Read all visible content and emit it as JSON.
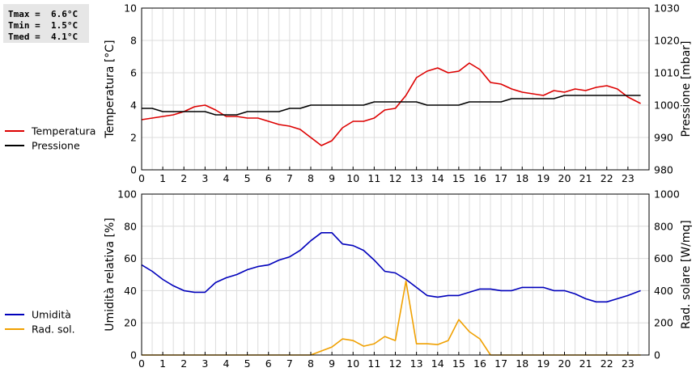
{
  "stats": [
    {
      "label": "Tmax =",
      "value": "6.6°C"
    },
    {
      "label": "Tmin =",
      "value": "1.5°C"
    },
    {
      "label": "Tmed =",
      "value": "4.1°C"
    }
  ],
  "chart_data": [
    {
      "type": "line",
      "xlim": [
        0,
        24
      ],
      "x_ticks": [
        0,
        1,
        2,
        3,
        4,
        5,
        6,
        7,
        8,
        9,
        10,
        11,
        12,
        13,
        14,
        15,
        16,
        17,
        18,
        19,
        20,
        21,
        22,
        23
      ],
      "ylabel_left": "Temperatura [°C]",
      "ylim_left": [
        0,
        10
      ],
      "y_ticks_left": [
        0,
        2,
        4,
        6,
        8,
        10
      ],
      "ylabel_right": "Pressione [mbar]",
      "ylim_right": [
        980,
        1030
      ],
      "y_ticks_right": [
        980,
        990,
        1000,
        1010,
        1020,
        1030
      ],
      "grid": true,
      "legend_position": "left",
      "series": [
        {
          "name": "Temperatura",
          "axis": "left",
          "color": "#dd0000",
          "x": [
            0,
            0.5,
            1,
            1.5,
            2,
            2.5,
            3,
            3.5,
            4,
            4.5,
            5,
            5.5,
            6,
            6.5,
            7,
            7.5,
            8,
            8.5,
            9,
            9.5,
            10,
            10.5,
            11,
            11.5,
            12,
            12.5,
            13,
            13.5,
            14,
            14.5,
            15,
            15.5,
            16,
            16.5,
            17,
            17.5,
            18,
            18.5,
            19,
            19.5,
            20,
            20.5,
            21,
            21.5,
            22,
            22.5,
            23,
            23.6
          ],
          "values": [
            3.1,
            3.2,
            3.3,
            3.4,
            3.6,
            3.9,
            4.0,
            3.7,
            3.3,
            3.3,
            3.2,
            3.2,
            3.0,
            2.8,
            2.7,
            2.5,
            2.0,
            1.5,
            1.8,
            2.6,
            3.0,
            3.0,
            3.2,
            3.7,
            3.8,
            4.6,
            5.7,
            6.1,
            6.3,
            6.0,
            6.1,
            6.6,
            6.2,
            5.4,
            5.3,
            5.0,
            4.8,
            4.7,
            4.6,
            4.9,
            4.8,
            5.0,
            4.9,
            5.1,
            5.2,
            5.0,
            4.5,
            4.1
          ]
        },
        {
          "name": "Pressione",
          "axis": "right",
          "color": "#000000",
          "x": [
            0,
            0.5,
            1,
            1.5,
            2,
            2.5,
            3,
            3.5,
            4,
            4.5,
            5,
            5.5,
            6,
            6.5,
            7,
            7.5,
            8,
            8.5,
            9,
            9.5,
            10,
            10.5,
            11,
            11.5,
            12,
            12.5,
            13,
            13.5,
            14,
            14.5,
            15,
            15.5,
            16,
            16.5,
            17,
            17.5,
            18,
            18.5,
            19,
            19.5,
            20,
            20.5,
            21,
            21.5,
            22,
            22.5,
            23,
            23.6
          ],
          "values": [
            999,
            999,
            998,
            998,
            998,
            998,
            998,
            997,
            997,
            997,
            998,
            998,
            998,
            998,
            999,
            999,
            1000,
            1000,
            1000,
            1000,
            1000,
            1000,
            1001,
            1001,
            1001,
            1001,
            1001,
            1000,
            1000,
            1000,
            1000,
            1001,
            1001,
            1001,
            1001,
            1002,
            1002,
            1002,
            1002,
            1002,
            1003,
            1003,
            1003,
            1003,
            1003,
            1003,
            1003,
            1003
          ]
        }
      ]
    },
    {
      "type": "line",
      "xlim": [
        0,
        24
      ],
      "x_ticks": [
        0,
        1,
        2,
        3,
        4,
        5,
        6,
        7,
        8,
        9,
        10,
        11,
        12,
        13,
        14,
        15,
        16,
        17,
        18,
        19,
        20,
        21,
        22,
        23
      ],
      "ylabel_left": "Umidità relativa [%]",
      "ylim_left": [
        0,
        100
      ],
      "y_ticks_left": [
        0,
        20,
        40,
        60,
        80,
        100
      ],
      "ylabel_right": "Rad. solare [W/mq]",
      "ylim_right": [
        0,
        1000
      ],
      "y_ticks_right": [
        0,
        200,
        400,
        600,
        800,
        1000
      ],
      "grid": true,
      "legend_position": "left",
      "series": [
        {
          "name": "Umidità",
          "axis": "left",
          "color": "#0000bb",
          "x": [
            0,
            0.5,
            1,
            1.5,
            2,
            2.5,
            3,
            3.5,
            4,
            4.5,
            5,
            5.5,
            6,
            6.5,
            7,
            7.5,
            8,
            8.5,
            9,
            9.5,
            10,
            10.5,
            11,
            11.5,
            12,
            12.5,
            13,
            13.5,
            14,
            14.5,
            15,
            15.5,
            16,
            16.5,
            17,
            17.5,
            18,
            18.5,
            19,
            19.5,
            20,
            20.5,
            21,
            21.5,
            22,
            22.5,
            23,
            23.6
          ],
          "values": [
            56,
            52,
            47,
            43,
            40,
            39,
            39,
            45,
            48,
            50,
            53,
            55,
            56,
            59,
            61,
            65,
            71,
            76,
            76,
            69,
            68,
            65,
            59,
            52,
            51,
            47,
            42,
            37,
            36,
            37,
            37,
            39,
            41,
            41,
            40,
            40,
            42,
            42,
            42,
            40,
            40,
            38,
            35,
            33,
            33,
            35,
            37,
            40
          ]
        },
        {
          "name": "Rad. sol.",
          "axis": "right",
          "color": "#f0a000",
          "x": [
            0,
            0.5,
            1,
            1.5,
            2,
            2.5,
            3,
            3.5,
            4,
            4.5,
            5,
            5.5,
            6,
            6.5,
            7,
            7.5,
            8,
            8.5,
            9,
            9.5,
            10,
            10.5,
            11,
            11.5,
            12,
            12.5,
            13,
            13.5,
            14,
            14.5,
            15,
            15.5,
            16,
            16.5,
            17,
            17.5,
            18,
            18.5,
            19,
            19.5,
            20,
            20.5,
            21,
            21.5,
            22,
            22.5,
            23,
            23.6
          ],
          "values": [
            0,
            0,
            0,
            0,
            0,
            0,
            0,
            0,
            0,
            0,
            0,
            0,
            0,
            0,
            0,
            0,
            0,
            25,
            50,
            100,
            90,
            55,
            70,
            115,
            90,
            460,
            70,
            70,
            65,
            90,
            220,
            145,
            100,
            0,
            0,
            0,
            0,
            0,
            0,
            0,
            0,
            0,
            0,
            0,
            0,
            0,
            0,
            0
          ]
        }
      ]
    }
  ]
}
